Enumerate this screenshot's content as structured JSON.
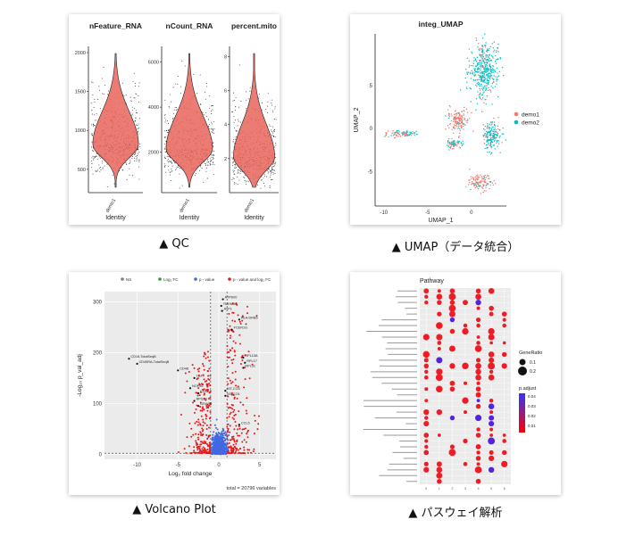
{
  "captions": {
    "qc": "▲ QC",
    "umap": "▲ UMAP（データ統合）",
    "volcano": "▲ Volcano Plot",
    "pathway": "▲ パスウェイ解析"
  },
  "chart_data": [
    {
      "type": "violin",
      "id": "qc",
      "panels": [
        {
          "title": "nFeature_RNA",
          "yticks": [
            500,
            1000,
            1500,
            2000
          ],
          "ylim": [
            200,
            2080
          ],
          "median": 820,
          "xtick": "demo1",
          "xlabel": "Identity"
        },
        {
          "title": "nCount_RNA",
          "yticks": [
            2000,
            4000,
            6000
          ],
          "ylim": [
            200,
            6700
          ],
          "median": 2150,
          "xtick": "demo1",
          "xlabel": "Identity"
        },
        {
          "title": "percent.mito",
          "yticks": [
            2,
            4,
            6,
            8
          ],
          "ylim": [
            0,
            8.6
          ],
          "median": 2.1,
          "xtick": "demo1",
          "xlabel": "Identity"
        }
      ],
      "fill_color": "#e8645a"
    },
    {
      "type": "scatter",
      "id": "umap",
      "title": "integ_UMAP",
      "xlabel": "UMAP_1",
      "ylabel": "UMAP_2",
      "xticks": [
        -10,
        -5,
        0
      ],
      "yticks": [
        -5,
        0,
        5
      ],
      "xlim": [
        -11,
        4
      ],
      "ylim": [
        -9,
        11
      ],
      "legend": [
        {
          "name": "demo1",
          "color": "#f8766d"
        },
        {
          "name": "demo2",
          "color": "#00bfc4"
        }
      ],
      "legend_position": "right",
      "clusters": [
        {
          "cx": 1.5,
          "cy": 6.8,
          "sx": 1.5,
          "sy": 2.8,
          "frac_demo2": 0.85
        },
        {
          "cx": -1.5,
          "cy": 1.0,
          "sx": 1.1,
          "sy": 1.1,
          "frac_demo2": 0.15
        },
        {
          "cx": 2.3,
          "cy": -0.8,
          "sx": 1.0,
          "sy": 1.5,
          "frac_demo2": 0.85
        },
        {
          "cx": 1.0,
          "cy": -6.3,
          "sx": 1.1,
          "sy": 0.8,
          "frac_demo2": 0.2
        },
        {
          "cx": -8.0,
          "cy": -0.6,
          "sx": 1.6,
          "sy": 0.35,
          "frac_demo2": 0.5
        },
        {
          "cx": -2.0,
          "cy": -1.8,
          "sx": 0.8,
          "sy": 0.5,
          "frac_demo2": 0.6
        }
      ]
    },
    {
      "type": "scatter",
      "id": "volcano",
      "legend": [
        "NS",
        "Log₂ FC",
        "p - value",
        "p - value and log₂ FC"
      ],
      "legend_colors": [
        "#808080",
        "#2ca02c",
        "#4169e1",
        "#e41a1c"
      ],
      "xlabel": "Log₂ fold change",
      "ylabel": "-Log₁₀ p_val_adj",
      "xticks": [
        -10,
        -5,
        0,
        5
      ],
      "yticks": [
        0,
        100,
        200,
        300
      ],
      "xlim": [
        -14,
        7
      ],
      "ylim": [
        -10,
        320
      ],
      "footer": "total = 20796 variables",
      "labeled_genes": [
        {
          "label": "ATP6V0",
          "x": 0.5,
          "y": 305
        },
        {
          "label": "TMEM66",
          "x": 0.3,
          "y": 292
        },
        {
          "label": "ATP1",
          "x": 0.4,
          "y": 282
        },
        {
          "label": "HLA-DRB5",
          "x": 2.5,
          "y": 265
        },
        {
          "label": "FCER1G",
          "x": 1.6,
          "y": 245
        },
        {
          "label": "CD16-TotalSeqB",
          "x": -11.0,
          "y": 188
        },
        {
          "label": "CD45RA-TotalSeqB",
          "x": -10.0,
          "y": 178
        },
        {
          "label": "CD48",
          "x": -5.0,
          "y": 165
        },
        {
          "label": "TCF7",
          "x": -3.0,
          "y": 150
        },
        {
          "label": "NOP56",
          "x": -3.5,
          "y": 130
        },
        {
          "label": "CD52",
          "x": -2.5,
          "y": 120
        },
        {
          "label": "RPS23",
          "x": -3.0,
          "y": 105
        },
        {
          "label": "GRASP",
          "x": -2.5,
          "y": 95
        },
        {
          "label": "MT-CO3",
          "x": 0.8,
          "y": 125
        },
        {
          "label": "MT-CO1",
          "x": 0.8,
          "y": 115
        },
        {
          "label": "RPL13A",
          "x": 3.0,
          "y": 190
        },
        {
          "label": "RPL17",
          "x": 3.2,
          "y": 180
        },
        {
          "label": "RPL31",
          "x": 3.0,
          "y": 170
        },
        {
          "label": "CCL5",
          "x": 2.5,
          "y": 58
        }
      ]
    },
    {
      "type": "scatter",
      "id": "pathway",
      "title": "Pathway",
      "legend_size_title": "GeneRatio",
      "size_legend": [
        {
          "label": "0.1",
          "r": 3.5
        },
        {
          "label": "0.2",
          "r": 5.0
        }
      ],
      "legend_color_title": "p.adjust",
      "color_ticks": [
        "0.04",
        "0.03",
        "0.02",
        "0.01"
      ],
      "color_low": "#ff0000",
      "color_high": "#3333ff",
      "n_columns": 7,
      "n_rows": 34,
      "x_categories": [
        "0",
        "1",
        "2",
        "3",
        "4",
        "5",
        "6"
      ]
    }
  ]
}
